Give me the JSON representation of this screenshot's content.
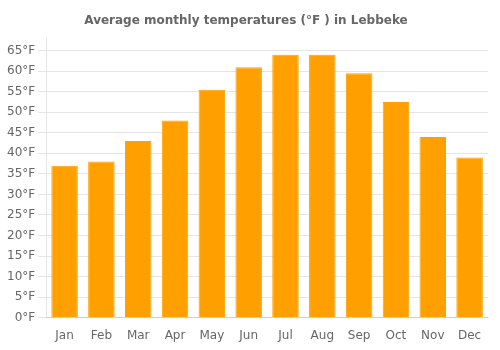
{
  "chart_data": {
    "type": "bar",
    "title": "Average monthly temperatures (°F ) in Lebbeke",
    "categories": [
      "Jan",
      "Feb",
      "Mar",
      "Apr",
      "May",
      "Jun",
      "Jul",
      "Aug",
      "Sep",
      "Oct",
      "Nov",
      "Dec"
    ],
    "values": [
      37.0,
      38.0,
      43.0,
      48.0,
      55.5,
      61.0,
      64.0,
      64.0,
      59.5,
      52.5,
      44.0,
      39.0
    ],
    "color": "#FFA000",
    "ylim": [
      0,
      68
    ],
    "yticks": [
      {
        "value": 0,
        "label": "0°F"
      },
      {
        "value": 5,
        "label": "5°F"
      },
      {
        "value": 10,
        "label": "10°F"
      },
      {
        "value": 15,
        "label": "15°F"
      },
      {
        "value": 20,
        "label": "20°F"
      },
      {
        "value": 25,
        "label": "25°F"
      },
      {
        "value": 30,
        "label": "30°F"
      },
      {
        "value": 35,
        "label": "35°F"
      },
      {
        "value": 40,
        "label": "40°F"
      },
      {
        "value": 45,
        "label": "45°F"
      },
      {
        "value": 50,
        "label": "50°F"
      },
      {
        "value": 55,
        "label": "55°F"
      },
      {
        "value": 60,
        "label": "60°F"
      },
      {
        "value": 65,
        "label": "65°F"
      }
    ],
    "grid": true
  }
}
